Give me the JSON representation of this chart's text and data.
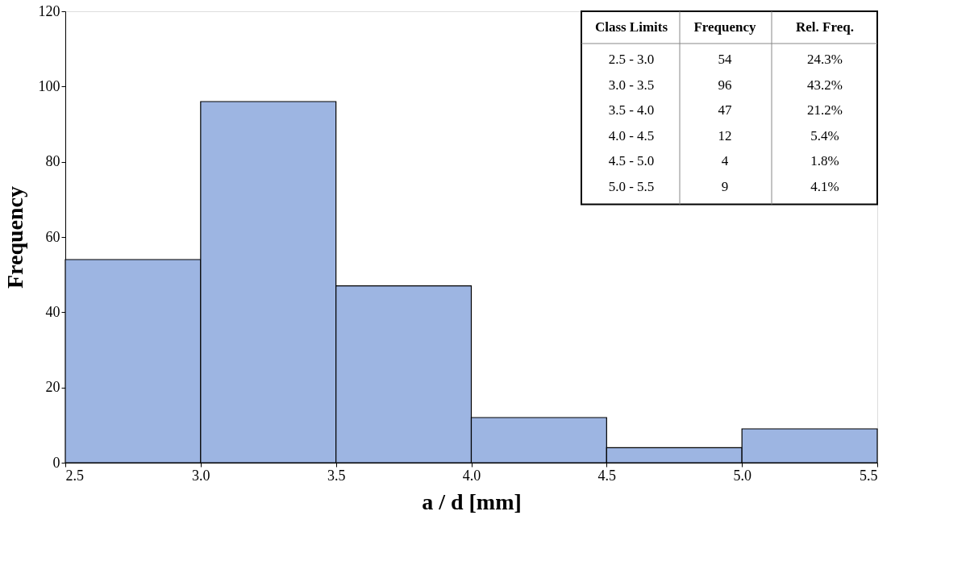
{
  "chart_data": {
    "type": "histogram",
    "xlabel": "a / d   [mm]",
    "ylabel": "Frequency",
    "bins": [
      2.5,
      3.0,
      3.5,
      4.0,
      4.5,
      5.0,
      5.5
    ],
    "values": [
      54,
      96,
      47,
      12,
      4,
      9
    ],
    "color": "#9db5e2",
    "xlim": [
      2.5,
      5.5
    ],
    "xticks": [
      {
        "value": 2.5,
        "label": "2.5"
      },
      {
        "value": 3,
        "label": "3.0"
      },
      {
        "value": 3.5,
        "label": "3.5"
      },
      {
        "value": 4,
        "label": "4.0"
      },
      {
        "value": 4.5,
        "label": "4.5"
      },
      {
        "value": 5,
        "label": "5.0"
      },
      {
        "value": 5.5,
        "label": "5.5"
      }
    ],
    "ylim": [
      0,
      120
    ],
    "yticks": [
      0,
      20,
      40,
      60,
      80,
      100,
      120
    ],
    "annotations": [
      "Class Limits",
      "Frequency",
      "Rel. Freq.",
      "2.5 - 3.0",
      "54",
      "24.3%",
      "3.0 - 3.5",
      "96",
      "43.2%",
      "3.5 - 4.0",
      "47",
      "21.2%",
      "4.0 - 4.5",
      "12",
      "5.4%",
      "4.5 - 5.0",
      "4",
      "1.8%",
      "5.0 - 5.5",
      "9",
      "4.1%"
    ]
  }
}
